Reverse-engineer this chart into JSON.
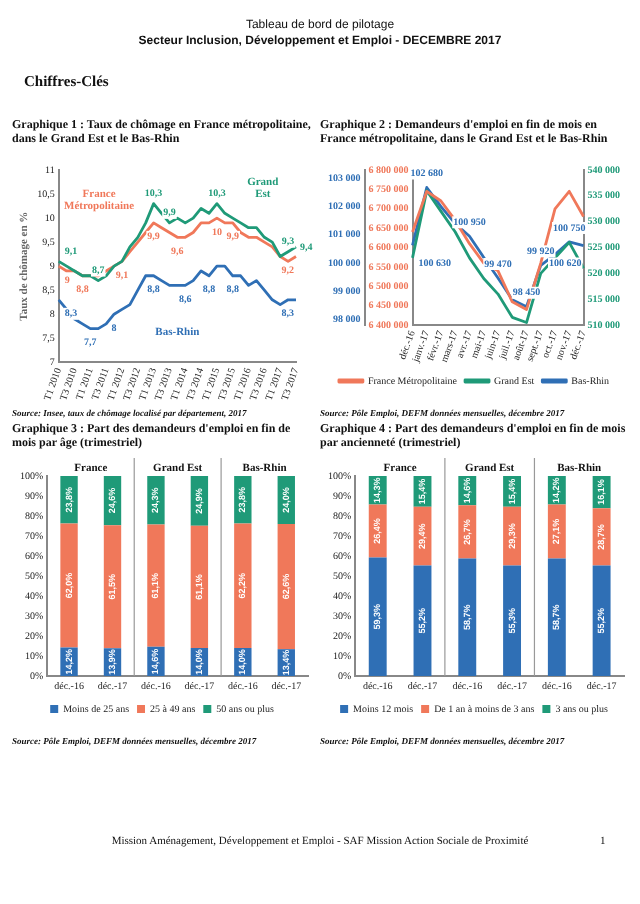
{
  "chart_data": [
    {
      "type": "line",
      "title": "Graphique 1 : Taux de chômage en France métropolitaine, dans le Grand Est et le Bas-Rhin",
      "ylabel": "Taux de chômage en %",
      "categories": [
        "T1 2010",
        null,
        "T3 2010",
        null,
        "T1 2011",
        null,
        "T3 2011",
        null,
        "T1 2012",
        null,
        "T3 2012",
        null,
        "T1 2013",
        null,
        "T3 2013",
        null,
        "T1 2014",
        null,
        "T3 2014",
        null,
        "T1 2015",
        null,
        "T3 2015",
        null,
        "T1 2016",
        null,
        "T3 2016",
        null,
        "T1 2017",
        null,
        "T3 2017"
      ],
      "series": [
        {
          "name": "Grand Est",
          "color": "#1f9a78",
          "values": [
            9.1,
            9.0,
            8.9,
            8.8,
            8.8,
            8.7,
            8.8,
            9.0,
            9.1,
            9.4,
            9.6,
            9.9,
            10.3,
            10.1,
            9.9,
            10.0,
            9.9,
            10.0,
            10.2,
            10.1,
            10.3,
            10.1,
            10.0,
            9.9,
            9.8,
            9.8,
            9.6,
            9.5,
            9.2,
            9.3,
            9.4
          ],
          "value_labels": [
            "9,1",
            null,
            null,
            null,
            null,
            "8,7",
            null,
            null,
            null,
            null,
            null,
            null,
            "10,3",
            null,
            "9,9",
            null,
            null,
            null,
            null,
            null,
            "10,3",
            null,
            null,
            null,
            null,
            null,
            null,
            null,
            null,
            "9,3",
            "9,4"
          ]
        },
        {
          "name": "France Métropolitaine",
          "color": "#f0785a",
          "values": [
            9.0,
            8.9,
            8.9,
            8.8,
            8.8,
            8.8,
            8.9,
            9.0,
            9.1,
            9.3,
            9.5,
            9.7,
            9.9,
            9.8,
            9.7,
            9.6,
            9.6,
            9.7,
            9.9,
            9.9,
            10.0,
            9.9,
            9.9,
            9.7,
            9.6,
            9.6,
            9.5,
            9.4,
            9.2,
            9.1,
            9.2
          ],
          "value_labels": [
            "9",
            null,
            null,
            "8,8",
            null,
            null,
            null,
            null,
            "9,1",
            null,
            null,
            null,
            "9,9",
            null,
            null,
            "9,6",
            null,
            null,
            null,
            null,
            "10",
            null,
            "9,9",
            null,
            null,
            null,
            null,
            null,
            null,
            null,
            "9,2"
          ]
        },
        {
          "name": "Bas-Rhin",
          "color": "#2f6fb5",
          "values": [
            8.3,
            8.1,
            7.9,
            7.8,
            7.7,
            7.7,
            7.8,
            8.0,
            8.1,
            8.2,
            8.5,
            8.8,
            8.8,
            8.7,
            8.6,
            8.6,
            8.6,
            8.7,
            8.9,
            8.8,
            9.0,
            9.0,
            8.8,
            8.8,
            8.6,
            8.7,
            8.5,
            8.3,
            8.2,
            8.3,
            8.3
          ],
          "value_labels": [
            "8,3",
            null,
            null,
            null,
            "7,7",
            null,
            null,
            "8",
            null,
            null,
            null,
            null,
            "8,8",
            null,
            null,
            null,
            "8,6",
            null,
            null,
            "8,8",
            null,
            null,
            "8,8",
            null,
            null,
            null,
            null,
            null,
            null,
            null,
            "8,3"
          ]
        }
      ],
      "ylim": [
        7,
        11
      ],
      "yticks": [
        {
          "value": 7,
          "label": "7"
        },
        {
          "value": 7.5,
          "label": "7,5"
        },
        {
          "value": 8,
          "label": "8"
        },
        {
          "value": 8.5,
          "label": "8,5"
        },
        {
          "value": 9,
          "label": "9"
        },
        {
          "value": 9.5,
          "label": "9,5"
        },
        {
          "value": 10,
          "label": "10"
        },
        {
          "value": 10.5,
          "label": "10,5"
        },
        {
          "value": 11,
          "label": "11"
        }
      ],
      "legend": false,
      "annotations": [
        "Tableau de bord de pilotage",
        "Secteur Inclusion, Développement et Emploi - DECEMBRE 2017",
        "Chiffres-Clés",
        "Source: Insee, taux de chômage localisé par département, 2017"
      ]
    },
    {
      "type": "line",
      "title": "Graphique 2 : Demandeurs d'emploi en fin de mois en France métropolitaine, dans le Grand Est et le Bas-Rhin",
      "categories": [
        "déc.-16",
        "janv.-17",
        "févr.-17",
        "mars-17",
        "avr.-17",
        "mai-17",
        "juin-17",
        "juil.-17",
        "août-17",
        "sept.-17",
        "oct.-17",
        "nov.-17",
        "déc.-17"
      ],
      "series": [
        {
          "name": "France Métropolitaine",
          "color": "#f0785a",
          "values": [
            6640000,
            6745000,
            6720000,
            6670000,
            6610000,
            6560000,
            6540000,
            6460000,
            6440000,
            6560000,
            6700000,
            6745000,
            6680000
          ]
        },
        {
          "name": "Grand Est",
          "color": "#1f9a78",
          "axis": "y2",
          "values": [
            523000,
            536000,
            532000,
            528000,
            523000,
            519000,
            516000,
            511500,
            510500,
            520000,
            523000,
            526000,
            521000
          ]
        },
        {
          "name": "Bas-Rhin",
          "color": "#2f6fb5",
          "axis": "y3",
          "values": [
            100630,
            102680,
            102000,
            101400,
            100950,
            100200,
            99470,
            98700,
            98450,
            99920,
            100300,
            100750,
            100620
          ],
          "value_labels": [
            "100 630",
            "102 680",
            null,
            null,
            "100 950",
            null,
            "99 470",
            null,
            "98 450",
            "99 920",
            null,
            "100 750",
            "100 620"
          ]
        }
      ],
      "ylim": [
        6400000,
        6800000
      ],
      "yticks": [
        {
          "value": 6400000,
          "label": "6 400 000"
        },
        {
          "value": 6450000,
          "label": "6 450 000"
        },
        {
          "value": 6500000,
          "label": "6 500 000"
        },
        {
          "value": 6550000,
          "label": "6 550 000"
        },
        {
          "value": 6600000,
          "label": "6 600 000"
        },
        {
          "value": 6650000,
          "label": "6 650 000"
        },
        {
          "value": 6700000,
          "label": "6 700 000"
        },
        {
          "value": 6750000,
          "label": "6 750 000"
        },
        {
          "value": 6800000,
          "label": "6 800 000"
        }
      ],
      "y2lim": [
        510000,
        540000
      ],
      "y2ticks": [
        {
          "value": 510000,
          "label": "510 000"
        },
        {
          "value": 515000,
          "label": "515 000"
        },
        {
          "value": 520000,
          "label": "520 000"
        },
        {
          "value": 525000,
          "label": "525 000"
        },
        {
          "value": 530000,
          "label": "530 000"
        },
        {
          "value": 535000,
          "label": "535 000"
        },
        {
          "value": 540000,
          "label": "540 000"
        }
      ],
      "y3lim": [
        97800,
        103300
      ],
      "y3ticks": [
        {
          "value": 98000,
          "label": "98 000"
        },
        {
          "value": 99000,
          "label": "99 000"
        },
        {
          "value": 100000,
          "label": "100 000"
        },
        {
          "value": 101000,
          "label": "101 000"
        },
        {
          "value": 102000,
          "label": "102 000"
        },
        {
          "value": 103000,
          "label": "103 000"
        }
      ],
      "legend": "bottom",
      "annotations": [
        "Source: Pôle Emploi, DEFM données mensuelles, décembre 2017"
      ]
    },
    {
      "type": "bar",
      "stacked": true,
      "title": "Graphique 3 : Part des demandeurs d'emploi en fin de mois par âge (trimestriel)",
      "categories": [
        "déc.-16",
        "déc.-17",
        "déc.-16",
        "déc.-17",
        "déc.-16",
        "déc.-17"
      ],
      "series": [
        {
          "name": "Moins de 25 ans",
          "color": "#2f6fb5",
          "values": [
            14.2,
            13.9,
            14.6,
            14.0,
            14.0,
            13.4
          ],
          "value_labels": [
            "14,2%",
            "13,9%",
            "14,6%",
            "14,0%",
            "14,0%",
            "13,4%"
          ]
        },
        {
          "name": "25 à 49 ans",
          "color": "#f0785a",
          "values": [
            62.0,
            61.5,
            61.1,
            61.1,
            62.2,
            62.6
          ],
          "value_labels": [
            "62,0%",
            "61,5%",
            "61,1%",
            "61,1%",
            "62,2%",
            "62,6%"
          ]
        },
        {
          "name": "50 ans ou plus",
          "color": "#1f9a78",
          "values": [
            23.8,
            24.6,
            24.3,
            24.9,
            23.8,
            24.0
          ],
          "value_labels": [
            "23,8%",
            "24,6%",
            "24,3%",
            "24,9%",
            "23,8%",
            "24,0%"
          ]
        }
      ],
      "ylim": [
        0,
        100
      ],
      "yticks": [
        {
          "value": 0,
          "label": "0%"
        },
        {
          "value": 10,
          "label": "10%"
        },
        {
          "value": 20,
          "label": "20%"
        },
        {
          "value": 30,
          "label": "30%"
        },
        {
          "value": 40,
          "label": "40%"
        },
        {
          "value": 50,
          "label": "50%"
        },
        {
          "value": 60,
          "label": "60%"
        },
        {
          "value": 70,
          "label": "70%"
        },
        {
          "value": 80,
          "label": "80%"
        },
        {
          "value": 90,
          "label": "90%"
        },
        {
          "value": 100,
          "label": "100%"
        }
      ],
      "legend": "bottom",
      "annotations": [
        "France",
        "Grand Est",
        "Bas-Rhin",
        "Source: Pôle Emploi, DEFM données mensuelles, décembre 2017"
      ]
    },
    {
      "type": "bar",
      "stacked": true,
      "title": "Graphique 4 : Part des demandeurs d'emploi en fin de mois par ancienneté (trimestriel)",
      "categories": [
        "déc.-16",
        "déc.-17",
        "déc.-16",
        "déc.-17",
        "déc.-16",
        "déc.-17"
      ],
      "series": [
        {
          "name": "Moins 12 mois",
          "color": "#2f6fb5",
          "values": [
            59.3,
            55.2,
            58.7,
            55.3,
            58.7,
            55.2
          ],
          "value_labels": [
            "59,3%",
            "55,2%",
            "58,7%",
            "55,3%",
            "58,7%",
            "55,2%"
          ]
        },
        {
          "name": "De 1 an à moins de 3 ans",
          "color": "#f0785a",
          "values": [
            26.4,
            29.4,
            26.7,
            29.3,
            27.1,
            28.7
          ],
          "value_labels": [
            "26,4%",
            "29,4%",
            "26,7%",
            "29,3%",
            "27,1%",
            "28,7%"
          ]
        },
        {
          "name": "3 ans ou plus",
          "color": "#1f9a78",
          "values": [
            14.3,
            15.4,
            14.6,
            15.4,
            14.2,
            16.1
          ],
          "value_labels": [
            "14,3%",
            "15,4%",
            "14,6%",
            "15,4%",
            "14,2%",
            "16,1%"
          ]
        }
      ],
      "ylim": [
        0,
        100
      ],
      "yticks": [
        {
          "value": 0,
          "label": "0%"
        },
        {
          "value": 10,
          "label": "10%"
        },
        {
          "value": 20,
          "label": "20%"
        },
        {
          "value": 30,
          "label": "30%"
        },
        {
          "value": 40,
          "label": "40%"
        },
        {
          "value": 50,
          "label": "50%"
        },
        {
          "value": 60,
          "label": "60%"
        },
        {
          "value": 70,
          "label": "70%"
        },
        {
          "value": 80,
          "label": "80%"
        },
        {
          "value": 90,
          "label": "90%"
        },
        {
          "value": 100,
          "label": "100%"
        }
      ],
      "legend": "bottom",
      "annotations": [
        "France",
        "Grand Est",
        "Bas-Rhin",
        "Source: Pôle Emploi, DEFM données mensuelles, décembre 2017",
        "Mission Aménagement, Développement et Emploi - SAF Mission Action Sociale de Proximité",
        "1"
      ]
    }
  ]
}
